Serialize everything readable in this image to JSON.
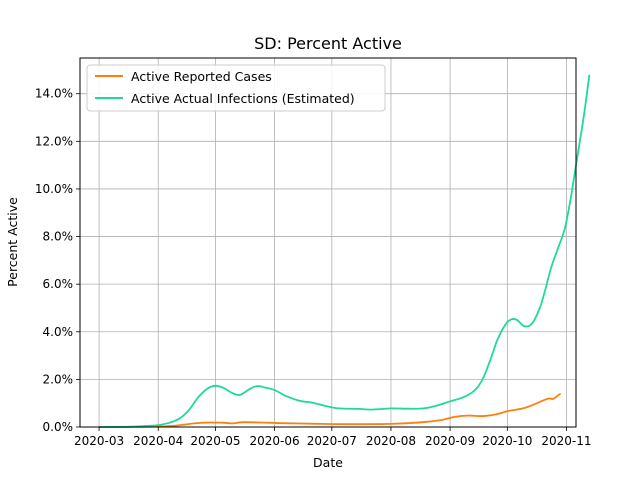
{
  "chart_data": {
    "type": "line",
    "title": "SD: Percent Active",
    "xlabel": "Date",
    "ylabel": "Percent Active",
    "xlim": [
      "2020-02-20",
      "2020-11-06"
    ],
    "ylim": [
      0,
      15.5
    ],
    "grid": true,
    "legend_position": "top-left",
    "x_ticks": [
      "2020-03",
      "2020-04",
      "2020-05",
      "2020-06",
      "2020-07",
      "2020-08",
      "2020-09",
      "2020-10",
      "2020-11"
    ],
    "y_ticks": [
      0,
      2,
      4,
      6,
      8,
      10,
      12,
      14
    ],
    "y_tick_labels": [
      "0.0%",
      "2.0%",
      "4.0%",
      "6.0%",
      "8.0%",
      "10.0%",
      "12.0%",
      "14.0%"
    ],
    "series": [
      {
        "name": "Active Reported Cases",
        "color": "#ff7f0e",
        "points": [
          [
            "2020-03-01",
            0.0
          ],
          [
            "2020-03-20",
            0.005
          ],
          [
            "2020-04-01",
            0.02
          ],
          [
            "2020-04-10",
            0.06
          ],
          [
            "2020-04-20",
            0.15
          ],
          [
            "2020-04-28",
            0.19
          ],
          [
            "2020-05-05",
            0.18
          ],
          [
            "2020-05-10",
            0.15
          ],
          [
            "2020-05-15",
            0.2
          ],
          [
            "2020-05-25",
            0.19
          ],
          [
            "2020-06-05",
            0.16
          ],
          [
            "2020-06-20",
            0.14
          ],
          [
            "2020-07-05",
            0.12
          ],
          [
            "2020-07-20",
            0.12
          ],
          [
            "2020-08-01",
            0.13
          ],
          [
            "2020-08-10",
            0.16
          ],
          [
            "2020-08-20",
            0.22
          ],
          [
            "2020-08-28",
            0.3
          ],
          [
            "2020-09-03",
            0.42
          ],
          [
            "2020-09-10",
            0.48
          ],
          [
            "2020-09-15",
            0.46
          ],
          [
            "2020-09-20",
            0.47
          ],
          [
            "2020-09-25",
            0.53
          ],
          [
            "2020-10-01",
            0.66
          ],
          [
            "2020-10-05",
            0.72
          ],
          [
            "2020-10-10",
            0.8
          ],
          [
            "2020-10-15",
            0.95
          ],
          [
            "2020-10-20",
            1.12
          ],
          [
            "2020-10-23",
            1.2
          ],
          [
            "2020-10-25",
            1.18
          ],
          [
            "2020-10-28",
            1.35
          ],
          [
            "2020-10-29",
            1.4
          ]
        ]
      },
      {
        "name": "Active Actual Infections (Estimated)",
        "color": "#1fd99b",
        "points": [
          [
            "2020-03-01",
            0.0
          ],
          [
            "2020-03-15",
            0.01
          ],
          [
            "2020-03-25",
            0.04
          ],
          [
            "2020-04-01",
            0.08
          ],
          [
            "2020-04-07",
            0.18
          ],
          [
            "2020-04-12",
            0.35
          ],
          [
            "2020-04-17",
            0.7
          ],
          [
            "2020-04-22",
            1.25
          ],
          [
            "2020-04-27",
            1.62
          ],
          [
            "2020-05-01",
            1.73
          ],
          [
            "2020-05-05",
            1.65
          ],
          [
            "2020-05-10",
            1.42
          ],
          [
            "2020-05-14",
            1.35
          ],
          [
            "2020-05-19",
            1.6
          ],
          [
            "2020-05-23",
            1.72
          ],
          [
            "2020-05-27",
            1.66
          ],
          [
            "2020-06-01",
            1.55
          ],
          [
            "2020-06-07",
            1.3
          ],
          [
            "2020-06-14",
            1.1
          ],
          [
            "2020-06-21",
            1.02
          ],
          [
            "2020-06-28",
            0.88
          ],
          [
            "2020-07-05",
            0.78
          ],
          [
            "2020-07-15",
            0.76
          ],
          [
            "2020-07-22",
            0.73
          ],
          [
            "2020-08-01",
            0.78
          ],
          [
            "2020-08-10",
            0.77
          ],
          [
            "2020-08-18",
            0.78
          ],
          [
            "2020-08-25",
            0.9
          ],
          [
            "2020-09-01",
            1.08
          ],
          [
            "2020-09-08",
            1.25
          ],
          [
            "2020-09-14",
            1.55
          ],
          [
            "2020-09-18",
            2.0
          ],
          [
            "2020-09-22",
            2.8
          ],
          [
            "2020-09-26",
            3.7
          ],
          [
            "2020-09-30",
            4.3
          ],
          [
            "2020-10-03",
            4.52
          ],
          [
            "2020-10-06",
            4.5
          ],
          [
            "2020-10-10",
            4.23
          ],
          [
            "2020-10-14",
            4.35
          ],
          [
            "2020-10-18",
            5.0
          ],
          [
            "2020-10-21",
            5.8
          ],
          [
            "2020-10-24",
            6.7
          ],
          [
            "2020-10-28",
            7.6
          ],
          [
            "2020-10-31",
            8.3
          ],
          [
            "2020-11-03",
            9.5
          ],
          [
            "2020-11-06",
            11.0
          ],
          [
            "2020-11-10",
            13.0
          ],
          [
            "2020-11-13",
            14.8
          ]
        ]
      }
    ]
  }
}
